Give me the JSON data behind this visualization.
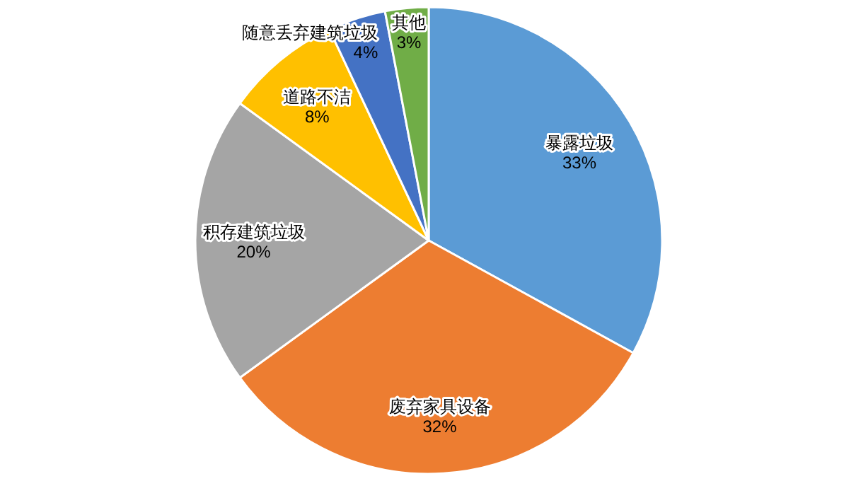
{
  "chart_data": {
    "type": "pie",
    "categories": [
      "暴露垃圾",
      "废弃家具设备",
      "积存建筑垃圾",
      "道路不洁",
      "随意丢弃建筑垃圾",
      "其他"
    ],
    "values": [
      33,
      32,
      20,
      8,
      4,
      3
    ],
    "value_labels": [
      "33%",
      "32%",
      "20%",
      "8%",
      "4%",
      "3%"
    ],
    "colors": [
      "#5b9bd5",
      "#ed7d31",
      "#a5a5a5",
      "#ffc000",
      "#4472c4",
      "#70ad47"
    ],
    "legend": false
  }
}
